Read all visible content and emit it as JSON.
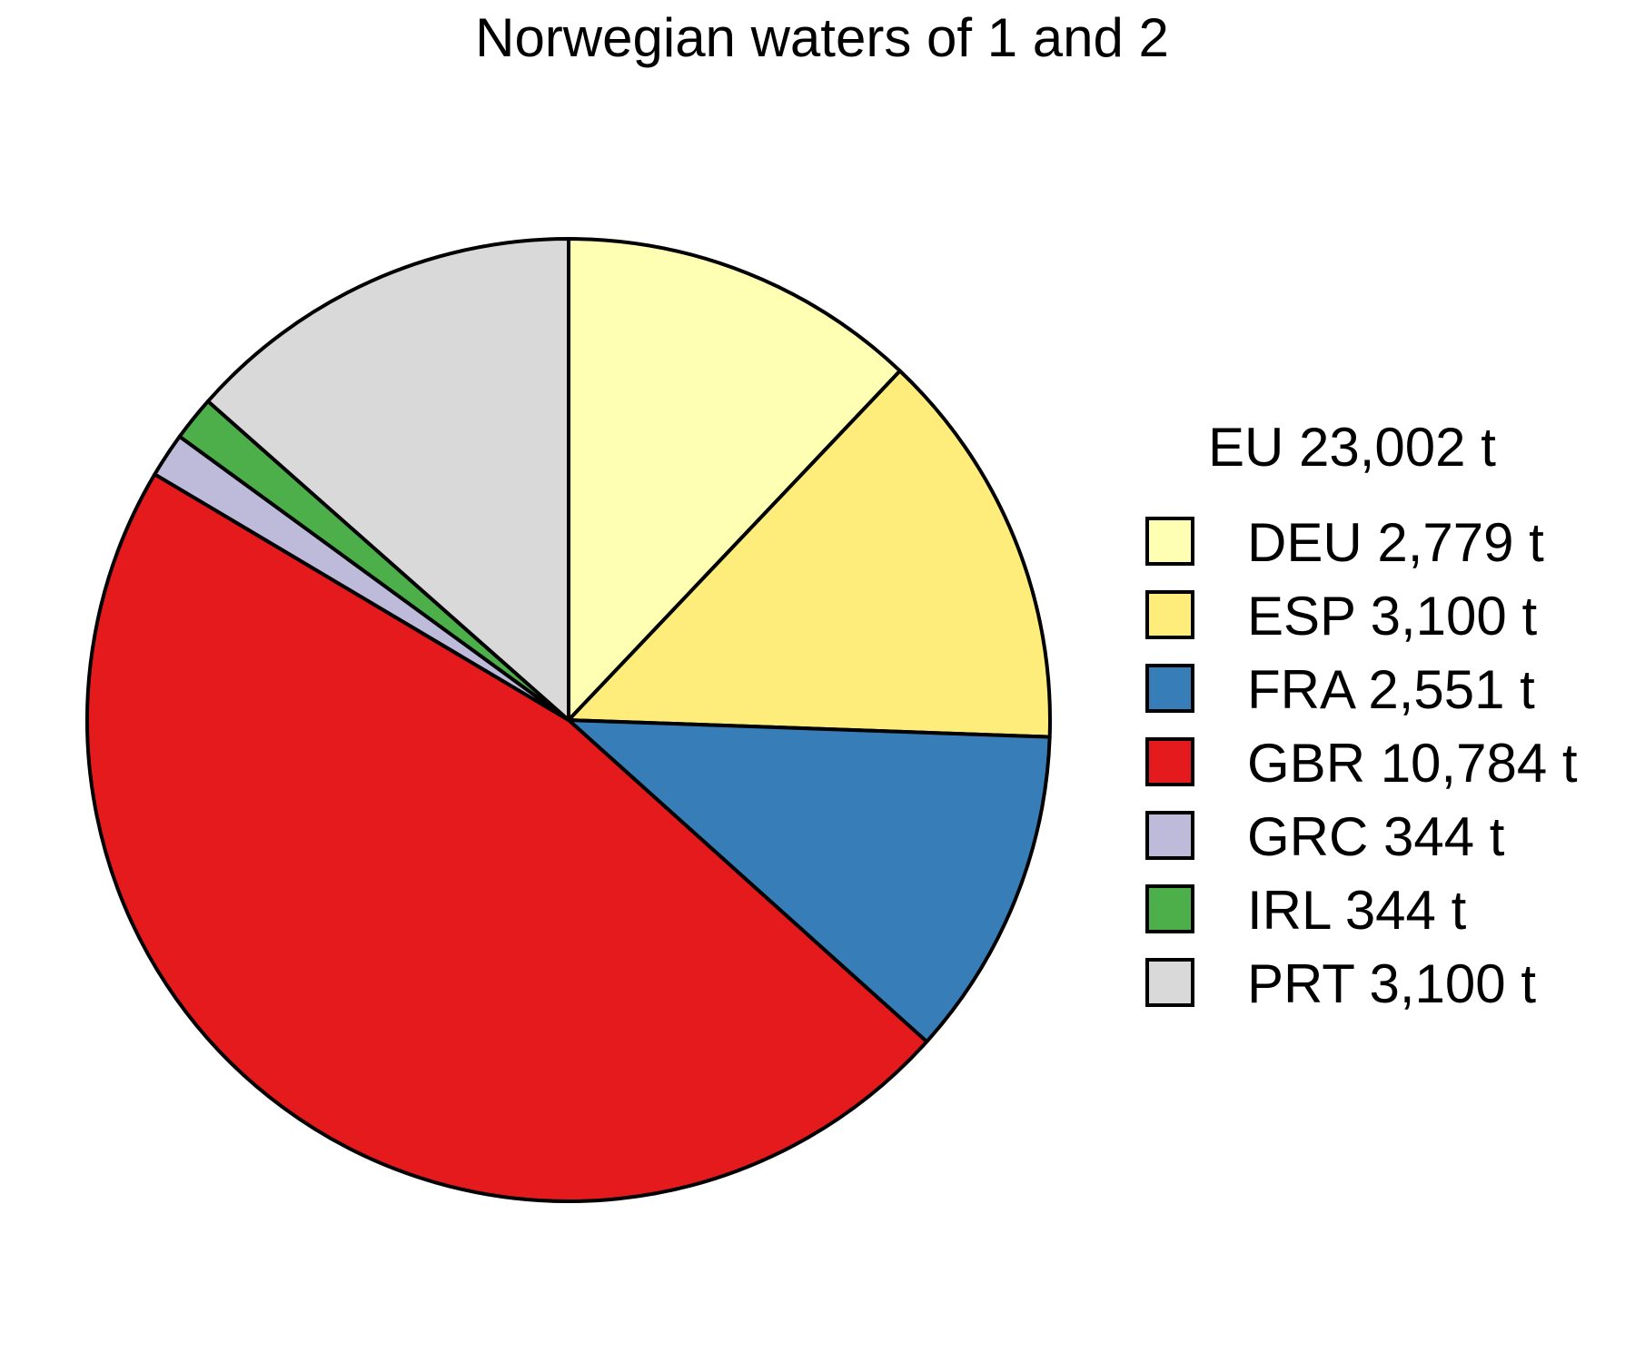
{
  "chart_data": {
    "type": "pie",
    "title": "Norwegian waters of 1 and 2",
    "legend_title": "EU 23,002 t",
    "legend_position": "right",
    "start_angle": "12 o'clock",
    "direction": "clockwise",
    "slice_outline_color": "#000000",
    "slices": [
      {
        "name": "DEU",
        "value": 2779,
        "label": "DEU 2,779 t",
        "color": "#FFFFB3"
      },
      {
        "name": "ESP",
        "value": 3100,
        "label": "ESP 3,100 t",
        "color": "#FEED7A"
      },
      {
        "name": "FRA",
        "value": 2551,
        "label": "FRA 2,551 t",
        "color": "#377EB8"
      },
      {
        "name": "GBR",
        "value": 10784,
        "label": "GBR 10,784 t",
        "color": "#E41A1C"
      },
      {
        "name": "GRC",
        "value": 344,
        "label": "GRC 344 t",
        "color": "#BEBADA"
      },
      {
        "name": "IRL",
        "value": 344,
        "label": "IRL 344 t",
        "color": "#4DAF4A"
      },
      {
        "name": "PRT",
        "value": 3100,
        "label": "PRT 3,100 t",
        "color": "#D9D9D9"
      }
    ]
  }
}
